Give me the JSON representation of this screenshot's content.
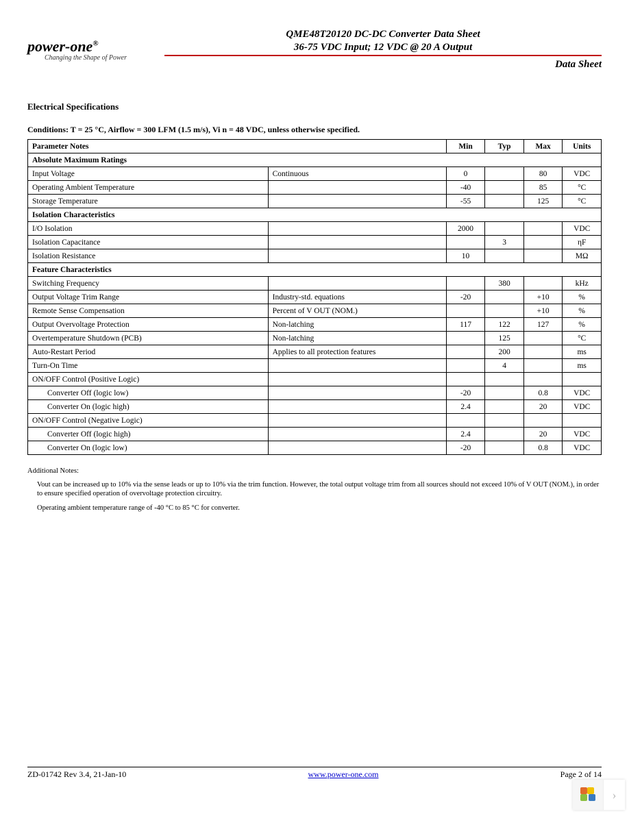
{
  "header": {
    "logo_main": "power-one",
    "logo_reg": "®",
    "logo_tagline": "Changing the Shape of Power",
    "doc_title": "QME48T20120 DC-DC Converter Data Sheet",
    "doc_subtitle": "36-75 VDC Input; 12 VDC @ 20 A Output",
    "datasheet_label": "Data Sheet",
    "red_rule_color": "#c00000"
  },
  "section_title": "Electrical Specifications",
  "conditions_prefix": "Conditions: T",
  "conditions_rest": " = 25 °C, Airflow = 300 LFM (1.5 m/s), Vi n = 48 VDC, unless otherwise specified.",
  "table": {
    "headers": {
      "param": "Parameter Notes",
      "min": "Min",
      "typ": "Typ",
      "max": "Max",
      "units": "Units"
    },
    "sections": [
      {
        "title": "Absolute Maximum Ratings",
        "rows": [
          {
            "param": "Input Voltage",
            "notes": "Continuous",
            "min": "0",
            "typ": "",
            "max": "80",
            "units": "VDC"
          },
          {
            "param": "Operating Ambient Temperature",
            "notes": "",
            "min": "-40",
            "typ": "",
            "max": "85",
            "units": "°C"
          },
          {
            "param": "Storage Temperature",
            "notes": "",
            "min": "-55",
            "typ": "",
            "max": "125",
            "units": "°C"
          }
        ]
      },
      {
        "title": "Isolation Characteristics",
        "rows": [
          {
            "param": "I/O Isolation",
            "notes": "",
            "min": "2000",
            "typ": "",
            "max": "",
            "units": "VDC"
          },
          {
            "param": "Isolation Capacitance",
            "notes": "",
            "min": "",
            "typ": "3",
            "max": "",
            "units": "ηF"
          },
          {
            "param": "Isolation Resistance",
            "notes": "",
            "min": "10",
            "typ": "",
            "max": "",
            "units": "MΩ"
          }
        ]
      },
      {
        "title": "Feature Characteristics",
        "rows": [
          {
            "param": "Switching Frequency",
            "notes": "",
            "min": "",
            "typ": "380",
            "max": "",
            "units": "kHz"
          },
          {
            "param": "Output Voltage Trim Range",
            "notes": "Industry-std. equations",
            "min": "-20",
            "typ": "",
            "max": "+10",
            "units": "%"
          },
          {
            "param": "Remote Sense Compensation",
            "notes": "Percent of V OUT (NOM.)",
            "min": "",
            "typ": "",
            "max": "+10",
            "units": "%"
          },
          {
            "param": "Output Overvoltage Protection",
            "notes": "Non-latching",
            "min": "117",
            "typ": "122",
            "max": "127",
            "units": "%"
          },
          {
            "param": "Overtemperature Shutdown (PCB)",
            "notes": "Non-latching",
            "min": "",
            "typ": "125",
            "max": "",
            "units": "°C"
          },
          {
            "param": "Auto-Restart Period",
            "notes": "Applies to all protection features",
            "min": "",
            "typ": "200",
            "max": "",
            "units": "ms"
          },
          {
            "param": "Turn-On Time",
            "notes": "",
            "min": "",
            "typ": "4",
            "max": "",
            "units": "ms"
          },
          {
            "param": "ON/OFF Control (Positive Logic)",
            "notes": "",
            "min": "",
            "typ": "",
            "max": "",
            "units": ""
          },
          {
            "param": "Converter Off (logic low)",
            "indent": true,
            "notes": "",
            "min": "-20",
            "typ": "",
            "max": "0.8",
            "units": "VDC"
          },
          {
            "param": "Converter On (logic high)",
            "indent": true,
            "notes": "",
            "min": "2.4",
            "typ": "",
            "max": "20",
            "units": "VDC"
          },
          {
            "param": "ON/OFF Control (Negative Logic)",
            "notes": "",
            "min": "",
            "typ": "",
            "max": "",
            "units": ""
          },
          {
            "param": "Converter Off (logic high)",
            "indent": true,
            "notes": "",
            "min": "2.4",
            "typ": "",
            "max": "20",
            "units": "VDC"
          },
          {
            "param": "Converter On (logic low)",
            "indent": true,
            "notes": "",
            "min": "-20",
            "typ": "",
            "max": "0.8",
            "units": "VDC"
          }
        ]
      }
    ]
  },
  "additional_notes": {
    "title": "Additional Notes:",
    "items": [
      "Vout can be increased up to 10% via the sense leads or up to 10% via the trim function. However, the total output voltage trim from all sources should not exceed 10% of V OUT (NOM.), in order to ensure specified operation of overvoltage protection circuitry.",
      "Operating ambient temperature range of -40 °C to 85 °C for converter."
    ]
  },
  "footer": {
    "left": "ZD-01742   Rev 3.4, 21-Jan-10",
    "center": "www.power-one.com",
    "right": "Page 2 of 14"
  },
  "corner_colors": [
    "#f2c200",
    "#8bbf3f",
    "#3a7bbf",
    "#e06a2b"
  ]
}
